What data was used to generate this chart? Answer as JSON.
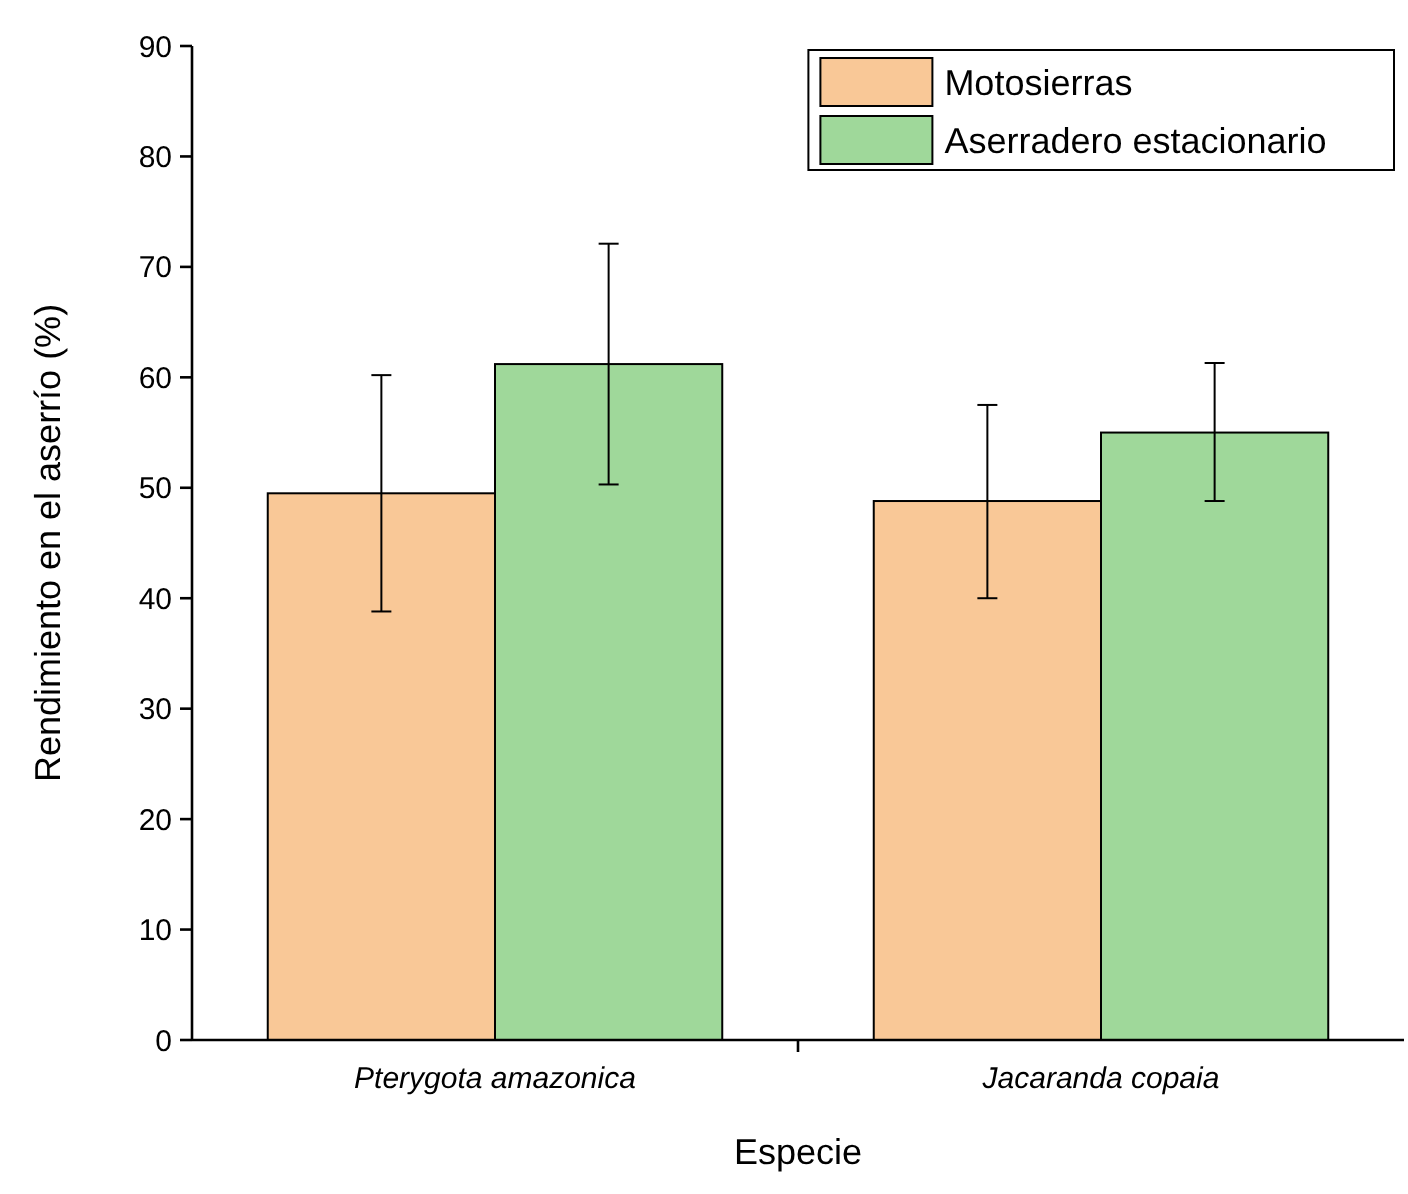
{
  "chart_data": {
    "type": "bar",
    "xlabel": "Especie",
    "ylabel": "Rendimiento en el aserrío (%)",
    "categories": [
      "Pterygota amazonica",
      "Jacaranda copaia"
    ],
    "series": [
      {
        "name": "Motosierras",
        "color": "#f9c897",
        "values": [
          49.5,
          48.8
        ],
        "errors": [
          [
            38.8,
            60.2
          ],
          [
            40.0,
            57.5
          ]
        ]
      },
      {
        "name": "Aserradero estacionario",
        "color": "#9fd89a",
        "values": [
          61.2,
          55.0
        ],
        "errors": [
          [
            50.3,
            72.1
          ],
          [
            48.8,
            61.3
          ]
        ]
      }
    ],
    "ylim": [
      0,
      90
    ],
    "yticks": [
      0,
      10,
      20,
      30,
      40,
      50,
      60,
      70,
      80,
      90
    ],
    "grid": false,
    "legend": "top right"
  }
}
